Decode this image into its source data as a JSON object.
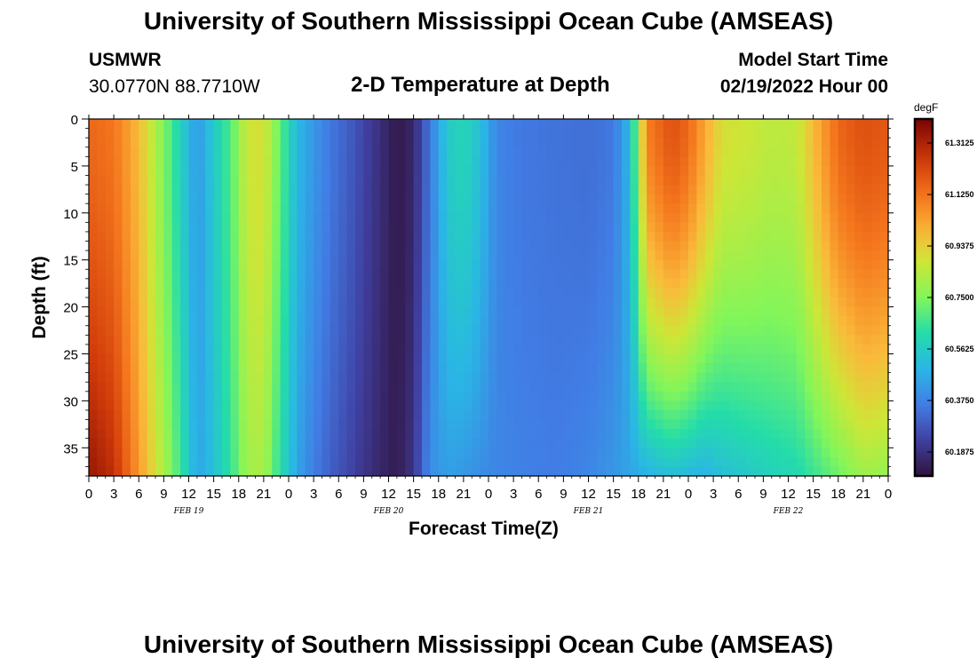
{
  "header": {
    "title": "University of Southern Mississippi Ocean Cube (AMSEAS)",
    "station": "USMWR",
    "coords": "30.0770N  88.7710W",
    "model_start_label": "Model Start Time",
    "model_start_value": "02/19/2022 Hour 00",
    "subtitle": "2-D Temperature at Depth"
  },
  "footer": {
    "title": "University of Southern Mississippi Ocean Cube (AMSEAS)"
  },
  "chart_data": {
    "type": "heatmap",
    "title": "2-D Temperature at Depth",
    "xlabel": "Forecast Time(Z)",
    "ylabel": "Depth (ft)",
    "xlim": [
      0,
      96
    ],
    "ylim": [
      38,
      0
    ],
    "x_tick_labels": [
      "0",
      "3",
      "6",
      "9",
      "12",
      "15",
      "18",
      "21",
      "0",
      "3",
      "6",
      "9",
      "12",
      "15",
      "18",
      "21",
      "0",
      "3",
      "6",
      "9",
      "12",
      "15",
      "18",
      "21",
      "0",
      "3",
      "6",
      "9",
      "12",
      "15",
      "18",
      "21",
      "0"
    ],
    "day_labels": [
      {
        "text": "FEB 19",
        "hour": 12
      },
      {
        "text": "FEB 20",
        "hour": 36
      },
      {
        "text": "FEB 21",
        "hour": 60
      },
      {
        "text": "FEB 22",
        "hour": 84
      }
    ],
    "y_ticks": [
      0,
      5,
      10,
      15,
      20,
      25,
      30,
      35
    ],
    "y_tick_labels": [
      "0",
      "5",
      "10",
      "15",
      "20",
      "25",
      "30",
      "35"
    ],
    "colorbar": {
      "unit": "degF",
      "range": [
        60.1,
        61.4
      ],
      "tick_values": [
        61.3125,
        61.125,
        60.9375,
        60.75,
        60.5625,
        60.375,
        60.1875
      ],
      "tick_labels": [
        "61.3125",
        "61.1250",
        "60.9375",
        "60.7500",
        "60.5625",
        "60.3750",
        "60.1875"
      ]
    },
    "surface_profile": [
      [
        0,
        61.15
      ],
      [
        3,
        61.12
      ],
      [
        6,
        60.98
      ],
      [
        9,
        60.75
      ],
      [
        11,
        60.58
      ],
      [
        13,
        60.42
      ],
      [
        15,
        60.55
      ],
      [
        17,
        60.68
      ],
      [
        19,
        60.88
      ],
      [
        21,
        60.9
      ],
      [
        23,
        60.7
      ],
      [
        25,
        60.5
      ],
      [
        27,
        60.42
      ],
      [
        29,
        60.35
      ],
      [
        31,
        60.3
      ],
      [
        33,
        60.24
      ],
      [
        35,
        60.18
      ],
      [
        37,
        60.12
      ],
      [
        39,
        60.16
      ],
      [
        41,
        60.35
      ],
      [
        43,
        60.55
      ],
      [
        45,
        60.6
      ],
      [
        47,
        60.52
      ],
      [
        49,
        60.38
      ],
      [
        52,
        60.35
      ],
      [
        56,
        60.34
      ],
      [
        60,
        60.33
      ],
      [
        63,
        60.35
      ],
      [
        65,
        60.5
      ],
      [
        67,
        61.1
      ],
      [
        70,
        61.2
      ],
      [
        72,
        61.15
      ],
      [
        74,
        61.02
      ],
      [
        76,
        60.9
      ],
      [
        79,
        60.88
      ],
      [
        82,
        60.85
      ],
      [
        85,
        60.86
      ],
      [
        87,
        60.98
      ],
      [
        90,
        61.15
      ],
      [
        93,
        61.2
      ],
      [
        96,
        61.18
      ]
    ],
    "bottom_profile": [
      [
        0,
        61.35
      ],
      [
        3,
        61.28
      ],
      [
        6,
        61.05
      ],
      [
        9,
        60.82
      ],
      [
        11,
        60.66
      ],
      [
        13,
        60.45
      ],
      [
        15,
        60.52
      ],
      [
        17,
        60.64
      ],
      [
        19,
        60.8
      ],
      [
        21,
        60.82
      ],
      [
        23,
        60.62
      ],
      [
        25,
        60.45
      ],
      [
        27,
        60.36
      ],
      [
        29,
        60.3
      ],
      [
        31,
        60.25
      ],
      [
        33,
        60.2
      ],
      [
        35,
        60.16
      ],
      [
        37,
        60.13
      ],
      [
        39,
        60.2
      ],
      [
        41,
        60.4
      ],
      [
        43,
        60.44
      ],
      [
        45,
        60.42
      ],
      [
        47,
        60.4
      ],
      [
        49,
        60.38
      ],
      [
        52,
        60.37
      ],
      [
        56,
        60.36
      ],
      [
        60,
        60.38
      ],
      [
        63,
        60.42
      ],
      [
        65,
        60.45
      ],
      [
        67,
        60.48
      ],
      [
        70,
        60.52
      ],
      [
        72,
        60.5
      ],
      [
        74,
        60.48
      ],
      [
        76,
        60.52
      ],
      [
        79,
        60.55
      ],
      [
        82,
        60.58
      ],
      [
        85,
        60.6
      ],
      [
        87,
        60.65
      ],
      [
        90,
        60.72
      ],
      [
        93,
        60.8
      ],
      [
        96,
        60.78
      ]
    ]
  }
}
